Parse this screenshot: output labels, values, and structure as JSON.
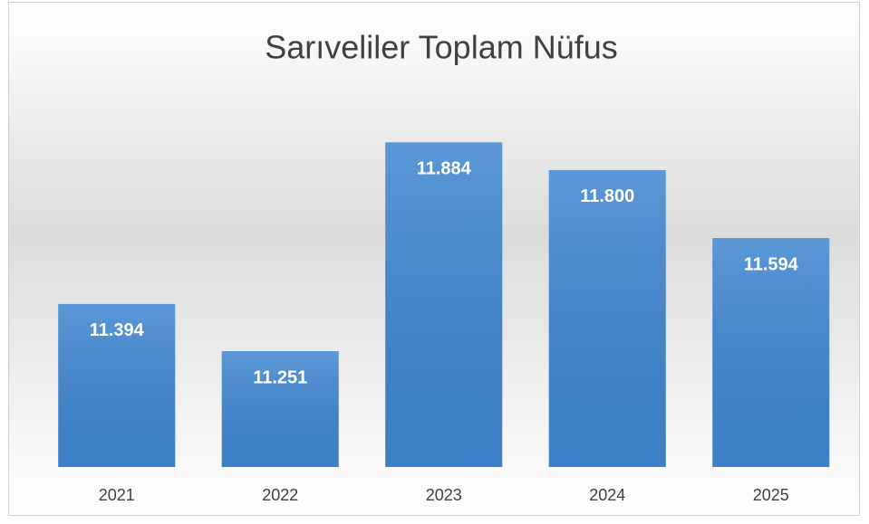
{
  "chart_data": {
    "type": "bar",
    "title": "Sarıveliler Toplam Nüfus",
    "categories": [
      "2021",
      "2022",
      "2023",
      "2024",
      "2025"
    ],
    "values": [
      11394,
      11251,
      11884,
      11800,
      11594
    ],
    "value_labels": [
      "11.394",
      "11.251",
      "11.884",
      "11.800",
      "11.594"
    ],
    "color": "#3f86d0",
    "ylim": [
      10900,
      12000
    ]
  }
}
